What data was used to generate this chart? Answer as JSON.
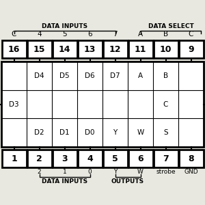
{
  "bg_color": "#e8e8e0",
  "top_pin_nums": [
    "16",
    "15",
    "14",
    "13",
    "12",
    "11",
    "10",
    "9"
  ],
  "bot_pin_nums": [
    "1",
    "2",
    "3",
    "4",
    "5",
    "6",
    "7",
    "8"
  ],
  "top_func": [
    "C",
    "4",
    "5",
    "6",
    "7",
    "A",
    "B",
    "C"
  ],
  "bot_func": [
    "",
    "2",
    "1",
    "0",
    "Y",
    "W",
    "strobe",
    "GND"
  ],
  "int_top": [
    "D4",
    "D5",
    "D6",
    "D7",
    "A",
    "B"
  ],
  "int_mid_left": "D3",
  "int_mid_right": "C",
  "int_bot": [
    "D2",
    "D1",
    "D0",
    "Y",
    "W",
    "S"
  ],
  "top_group1_label": "DATA INPUTS",
  "top_group2_label": "DATA SELECT",
  "bot_group1_label": "DATA INPUTS",
  "bot_group2_label": "OUTPUTS",
  "n_pins": 8
}
